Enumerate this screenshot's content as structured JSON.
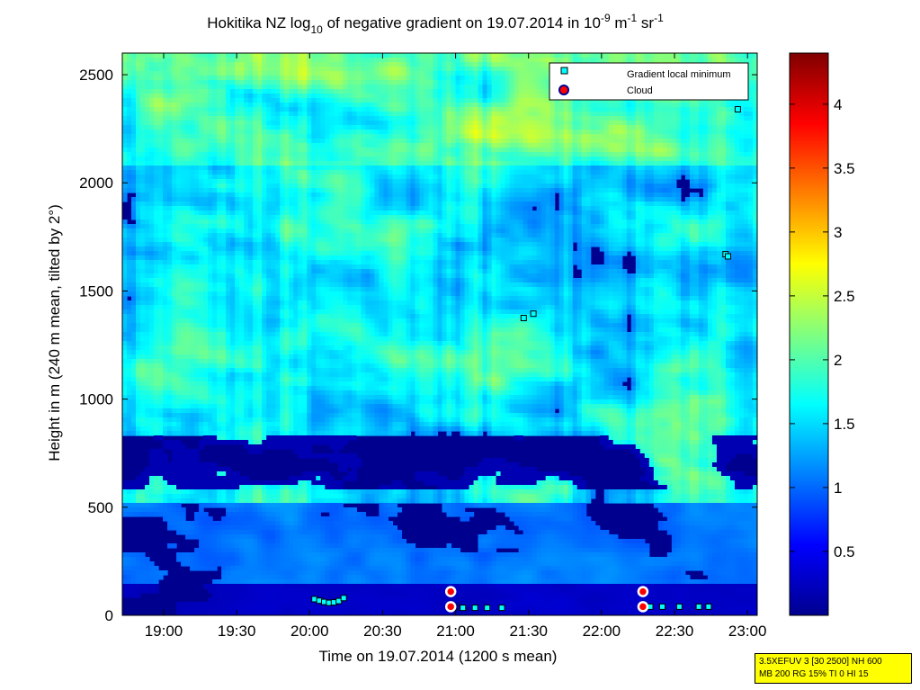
{
  "chart_data": {
    "type": "heatmap",
    "title_parts": {
      "prefix": "Hokitika NZ log",
      "sub": "10",
      "middle": " of negative gradient on 19.07.2014 in 10",
      "exp1": "-9",
      "unit1": " m",
      "exp2": "-1",
      "unit2": " sr",
      "exp3": "-1"
    },
    "xlabel": "Time on 19.07.2014 (1200 s mean)",
    "ylabel": "Height in m (240 m mean, tilted by 2°)",
    "xticks": [
      "19:00",
      "19:30",
      "20:00",
      "20:30",
      "21:00",
      "21:30",
      "22:00",
      "22:30",
      "23:00"
    ],
    "yticks": [
      "0",
      "500",
      "1000",
      "1500",
      "2000",
      "2500"
    ],
    "colorbar_ticks": [
      "0.5",
      "1",
      "1.5",
      "2",
      "2.5",
      "3",
      "3.5",
      "4"
    ],
    "colorbar_range": [
      0,
      4.4
    ],
    "xlim_minutes": [
      1123,
      1384
    ],
    "ylim": [
      0,
      2600
    ],
    "colormap": "jet",
    "legend": {
      "placement": "top-right",
      "entries": [
        {
          "label": "Gradient local minimum",
          "marker": "square",
          "color": "#00ffff"
        },
        {
          "label": "Cloud",
          "marker": "circle",
          "color": "#ff0000"
        }
      ]
    },
    "gradient_local_minimum": [
      {
        "t": "20:02",
        "h": 75
      },
      {
        "t": "20:04",
        "h": 68
      },
      {
        "t": "20:06",
        "h": 62
      },
      {
        "t": "20:08",
        "h": 58
      },
      {
        "t": "20:10",
        "h": 60
      },
      {
        "t": "20:12",
        "h": 66
      },
      {
        "t": "20:14",
        "h": 80
      },
      {
        "t": "20:59",
        "h": 35
      },
      {
        "t": "21:03",
        "h": 35
      },
      {
        "t": "21:08",
        "h": 35
      },
      {
        "t": "21:13",
        "h": 35
      },
      {
        "t": "21:19",
        "h": 35
      },
      {
        "t": "21:28",
        "h": 1375
      },
      {
        "t": "21:32",
        "h": 1395
      },
      {
        "t": "22:20",
        "h": 40
      },
      {
        "t": "22:25",
        "h": 40
      },
      {
        "t": "22:32",
        "h": 40
      },
      {
        "t": "22:40",
        "h": 40
      },
      {
        "t": "22:44",
        "h": 40
      },
      {
        "t": "22:51",
        "h": 1670
      },
      {
        "t": "22:52",
        "h": 1660
      },
      {
        "t": "22:56",
        "h": 2340
      }
    ],
    "cloud": [
      {
        "t": "20:58",
        "h": 110
      },
      {
        "t": "20:58",
        "h": 40
      },
      {
        "t": "22:17",
        "h": 110
      },
      {
        "t": "22:17",
        "h": 40
      }
    ]
  },
  "info_box": {
    "line1": "3.5XEFUV 3 [30 2500] NH 600",
    "line2": "MB 200 RG 15% TI 0 HI 15"
  }
}
